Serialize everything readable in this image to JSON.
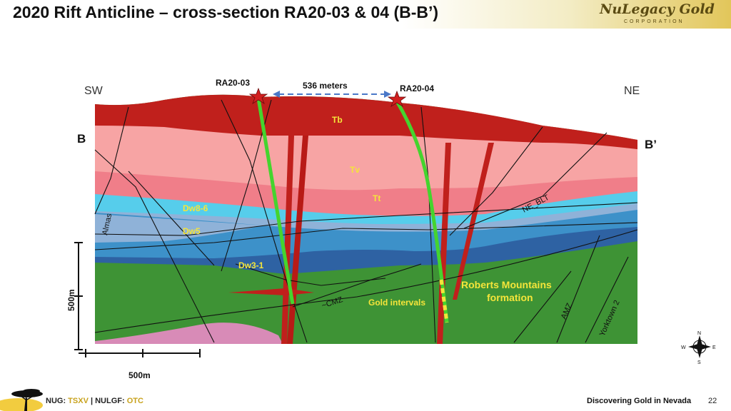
{
  "slide": {
    "title": "2020 Rift Anticline – cross-section RA20-03 & 04 (B-B’)",
    "page_number": "22",
    "tagline": "Discovering Gold in Nevada"
  },
  "logo": {
    "name": "NuLegacy Gold",
    "sub": "CORPORATION"
  },
  "footer": {
    "ticker1": "NUG:",
    "exch1": "TSXV",
    "sep": "|",
    "ticker2": "NULGF:",
    "exch2": "OTC"
  },
  "section": {
    "sw": "SW",
    "ne": "NE",
    "b_left": "B",
    "b_right": "B’",
    "hole1": "RA20-03",
    "hole2": "RA20-04",
    "distance": "536 meters",
    "units": {
      "tb": "Tb",
      "tv": "Tv",
      "tt": "Tt",
      "dw86": "Dw8-6",
      "dw5": "Dw5",
      "dw31": "Dw3-1"
    },
    "roberts1": "Roberts Mountains",
    "roberts2": "formation",
    "gold": "Gold intervals",
    "faults": {
      "almas": "Almas",
      "ne_blt": "NE_BLT",
      "cmz": "~CMZ",
      "amz": "AMZ",
      "yorktown": "Yorktown 2"
    },
    "scale_v": "500m",
    "scale_h": "500m"
  },
  "compass": {
    "n": "N",
    "s": "S",
    "e": "E",
    "w": "W"
  },
  "colors": {
    "tb": "#c0201c",
    "tv": "#f7a4a4",
    "tt": "#f07e89",
    "dw86": "#56cdeb",
    "dw5": "#8fb2d8",
    "dw31": "#3d91c9",
    "dw_dark": "#2e62a3",
    "roberts": "#3e9335",
    "pink": "#d88bb7",
    "drill": "#45d42e",
    "gold_text": "#f5e53a"
  }
}
